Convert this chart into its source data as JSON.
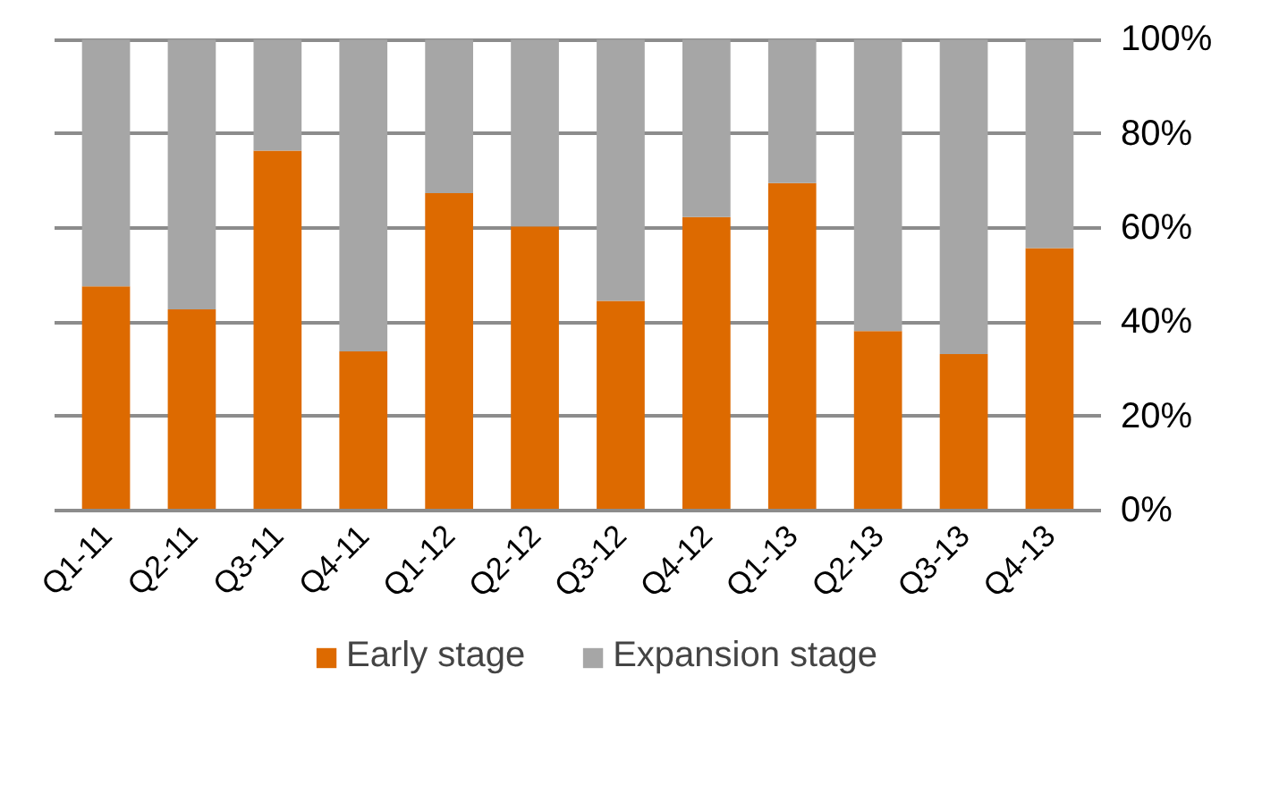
{
  "chart_data": {
    "type": "bar",
    "stacked": true,
    "categories": [
      "Q1-11",
      "Q2-11",
      "Q3-11",
      "Q4-11",
      "Q1-12",
      "Q2-12",
      "Q3-12",
      "Q4-12",
      "Q1-13",
      "Q2-13",
      "Q3-13",
      "Q4-13"
    ],
    "series": [
      {
        "name": "Early stage",
        "color": "#dd6a00",
        "values": [
          47.6,
          42.7,
          76.4,
          33.8,
          67.4,
          60.3,
          44.5,
          62.3,
          69.5,
          38.1,
          33.2,
          55.7
        ]
      },
      {
        "name": "Expansion stage",
        "color": "#a6a6a6",
        "values": [
          52.4,
          57.3,
          23.6,
          66.2,
          32.6,
          39.7,
          55.5,
          37.7,
          30.5,
          61.9,
          66.8,
          44.3
        ]
      }
    ],
    "ylim": [
      0,
      100
    ],
    "yticks": [
      {
        "value": 0,
        "label": "0%"
      },
      {
        "value": 20,
        "label": "20%"
      },
      {
        "value": 40,
        "label": "40%"
      },
      {
        "value": 60,
        "label": "60%"
      },
      {
        "value": 80,
        "label": "80%"
      },
      {
        "value": 100,
        "label": "100%"
      }
    ],
    "grid": "y",
    "legend": "bottom"
  }
}
